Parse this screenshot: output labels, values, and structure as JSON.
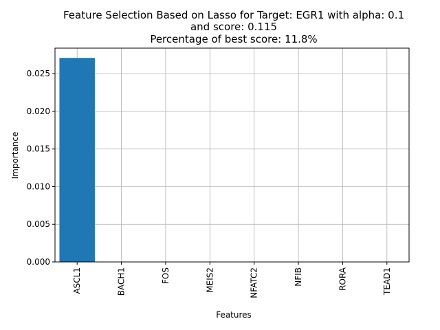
{
  "chart_data": {
    "type": "bar",
    "title_lines": [
      "Feature Selection Based on Lasso for Target: EGR1 with alpha: 0.1",
      "and score: 0.115",
      "Percentage of best score: 11.8%"
    ],
    "xlabel": "Features",
    "ylabel": "Importance",
    "categories": [
      "ASCL1",
      "BACH1",
      "FOS",
      "MEIS2",
      "NFATC2",
      "NFIB",
      "RORA",
      "TEAD1"
    ],
    "values": [
      0.0271,
      0,
      0,
      0,
      0,
      0,
      0,
      0
    ],
    "ylim": [
      0,
      0.0284
    ],
    "yticks": [
      0.0,
      0.005,
      0.01,
      0.015,
      0.02,
      0.025
    ],
    "ytick_labels": [
      "0.000",
      "0.005",
      "0.010",
      "0.015",
      "0.020",
      "0.025"
    ],
    "grid": true,
    "bar_color": "#1f77b4",
    "grid_color": "#b0b0b0"
  }
}
